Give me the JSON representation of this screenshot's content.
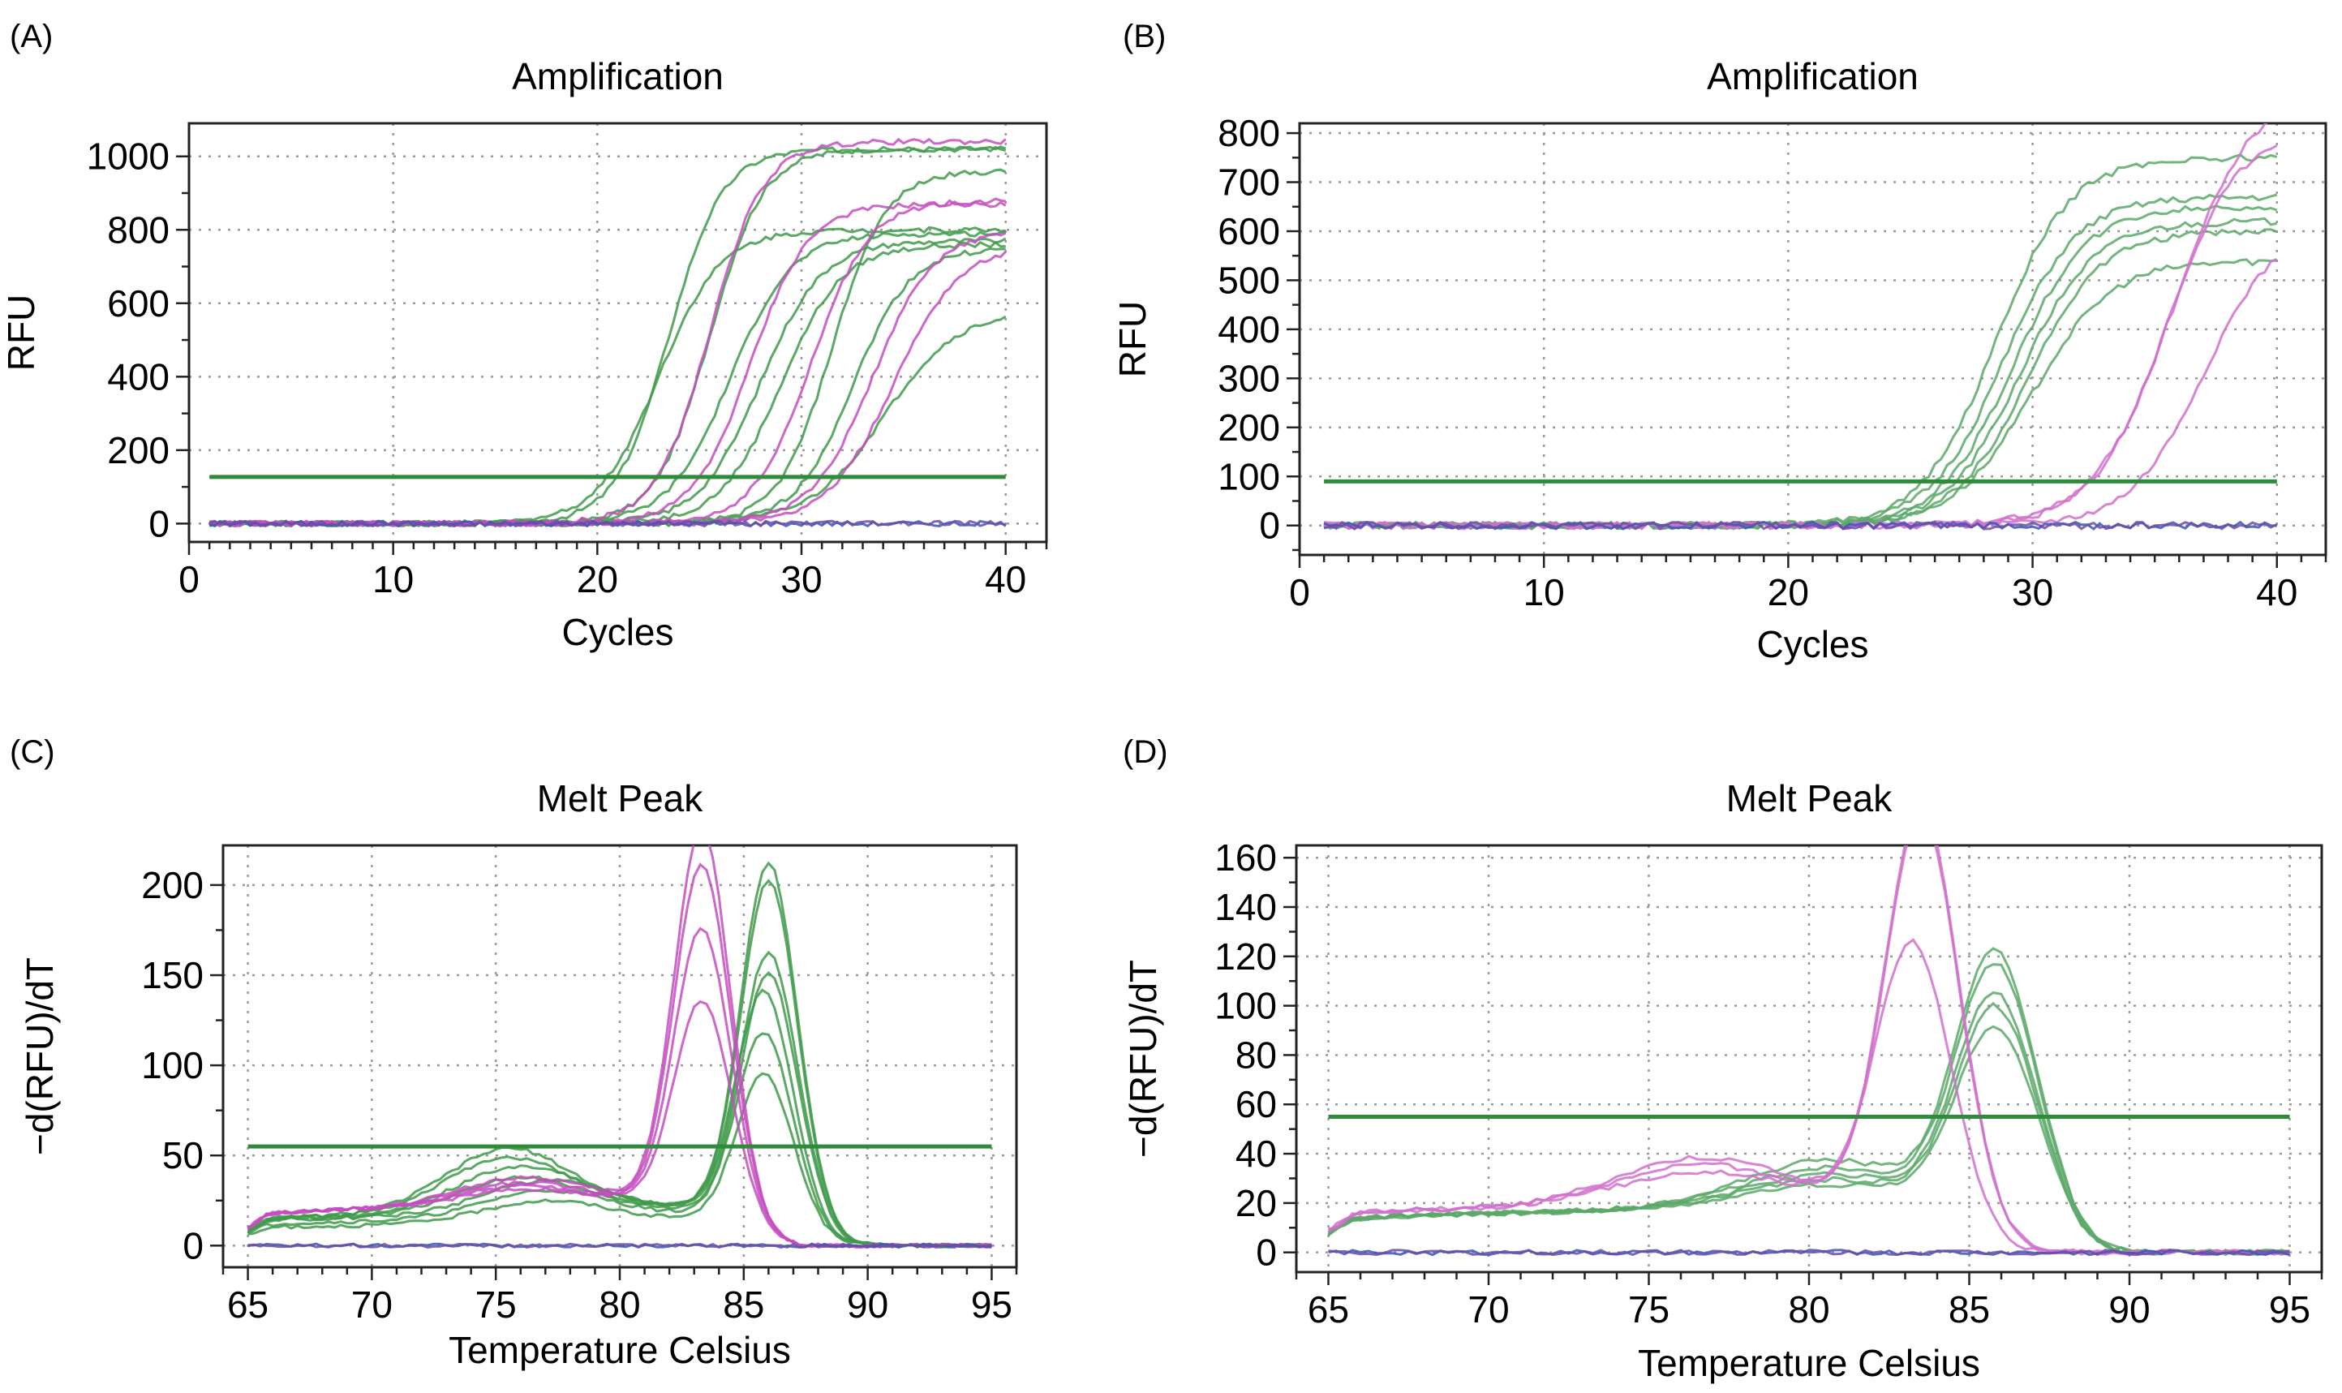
{
  "panels": [
    {
      "id": "A",
      "label": "(A)",
      "chart_data": {
        "type": "line",
        "title": "Amplification",
        "xlabel": "Cycles",
        "ylabel": "RFU",
        "xlim": [
          0,
          42
        ],
        "ylim": [
          -50,
          1090
        ],
        "xticks": [
          0,
          10,
          20,
          30,
          40
        ],
        "yticks": [
          0,
          200,
          400,
          600,
          800,
          1000
        ],
        "threshold": 127,
        "threshold_range": [
          1,
          40
        ],
        "curve_model": "sigmoid",
        "series": [
          {
            "name": "green-1",
            "color": "#3f9a4a",
            "plateau": 1020,
            "midpoint": 23.5,
            "slope": 1.3,
            "x_start": 1,
            "x_end": 40
          },
          {
            "name": "green-2",
            "color": "#3f9a4a",
            "plateau": 800,
            "midpoint": 23.0,
            "slope": 1.5,
            "x_start": 1,
            "x_end": 40
          },
          {
            "name": "green-3",
            "color": "#3f9a4a",
            "plateau": 1020,
            "midpoint": 25.5,
            "slope": 1.3,
            "x_start": 1,
            "x_end": 40
          },
          {
            "name": "green-4",
            "color": "#3f9a4a",
            "plateau": 790,
            "midpoint": 26.5,
            "slope": 1.5,
            "x_start": 1,
            "x_end": 40
          },
          {
            "name": "green-5",
            "color": "#3f9a4a",
            "plateau": 770,
            "midpoint": 28.0,
            "slope": 1.5,
            "x_start": 1,
            "x_end": 40
          },
          {
            "name": "green-6",
            "color": "#3f9a4a",
            "plateau": 760,
            "midpoint": 29.0,
            "slope": 1.5,
            "x_start": 1,
            "x_end": 40
          },
          {
            "name": "green-7",
            "color": "#3f9a4a",
            "plateau": 960,
            "midpoint": 31.5,
            "slope": 1.3,
            "x_start": 1,
            "x_end": 40
          },
          {
            "name": "green-8",
            "color": "#3f9a4a",
            "plateau": 750,
            "midpoint": 32.5,
            "slope": 1.4,
            "x_start": 1,
            "x_end": 40
          },
          {
            "name": "green-9",
            "color": "#3f9a4a",
            "plateau": 580,
            "midpoint": 34.0,
            "slope": 1.8,
            "x_start": 1,
            "x_end": 40
          },
          {
            "name": "magenta-1",
            "color": "#c44cc0",
            "plateau": 1040,
            "midpoint": 25.5,
            "slope": 1.3,
            "x_start": 1,
            "x_end": 40
          },
          {
            "name": "magenta-2",
            "color": "#c44cc0",
            "plateau": 870,
            "midpoint": 27.5,
            "slope": 1.4,
            "x_start": 1,
            "x_end": 40
          },
          {
            "name": "magenta-3",
            "color": "#c44cc0",
            "plateau": 880,
            "midpoint": 30.5,
            "slope": 1.4,
            "x_start": 1,
            "x_end": 40
          },
          {
            "name": "magenta-4",
            "color": "#c44cc0",
            "plateau": 800,
            "midpoint": 33.5,
            "slope": 1.5,
            "x_start": 1,
            "x_end": 40
          },
          {
            "name": "magenta-5",
            "color": "#c44cc0",
            "plateau": 760,
            "midpoint": 34.5,
            "slope": 1.6,
            "x_start": 1,
            "x_end": 40
          },
          {
            "name": "negative-1",
            "color": "#3b55b8",
            "plateau": 0,
            "midpoint": 30,
            "slope": 1,
            "x_start": 1,
            "x_end": 40
          },
          {
            "name": "negative-2",
            "color": "#6a4fa6",
            "plateau": 0,
            "midpoint": 30,
            "slope": 1,
            "x_start": 1,
            "x_end": 40
          }
        ]
      }
    },
    {
      "id": "B",
      "label": "(B)",
      "chart_data": {
        "type": "line",
        "title": "Amplification",
        "xlabel": "Cycles",
        "ylabel": "RFU",
        "xlim": [
          0,
          42
        ],
        "ylim": [
          -60,
          820
        ],
        "xticks": [
          0,
          10,
          20,
          30,
          40
        ],
        "yticks": [
          0,
          100,
          200,
          300,
          400,
          500,
          600,
          700,
          800
        ],
        "threshold": 90,
        "threshold_range": [
          1,
          40
        ],
        "curve_model": "sigmoid",
        "series": [
          {
            "name": "green-1",
            "color": "#5aa867",
            "plateau": 750,
            "midpoint": 28.5,
            "slope": 1.5,
            "x_start": 1,
            "x_end": 40
          },
          {
            "name": "green-2",
            "color": "#5aa867",
            "plateau": 670,
            "midpoint": 28.8,
            "slope": 1.5,
            "x_start": 1,
            "x_end": 40
          },
          {
            "name": "green-3",
            "color": "#5aa867",
            "plateau": 650,
            "midpoint": 29.2,
            "slope": 1.5,
            "x_start": 1,
            "x_end": 40
          },
          {
            "name": "green-4",
            "color": "#5aa867",
            "plateau": 620,
            "midpoint": 29.5,
            "slope": 1.5,
            "x_start": 1,
            "x_end": 40
          },
          {
            "name": "green-5",
            "color": "#5aa867",
            "plateau": 600,
            "midpoint": 29.8,
            "slope": 1.5,
            "x_start": 1,
            "x_end": 40
          },
          {
            "name": "green-6",
            "color": "#5aa867",
            "plateau": 540,
            "midpoint": 30.0,
            "slope": 1.6,
            "x_start": 1,
            "x_end": 40
          },
          {
            "name": "magenta-1",
            "color": "#d070cc",
            "plateau": 900,
            "midpoint": 35.8,
            "slope": 1.6,
            "x_start": 1,
            "x_end": 40
          },
          {
            "name": "magenta-2",
            "color": "#d070cc",
            "plateau": 820,
            "midpoint": 35.5,
            "slope": 1.5,
            "x_start": 1,
            "x_end": 40
          },
          {
            "name": "magenta-3",
            "color": "#d070cc",
            "plateau": 620,
            "midpoint": 37.0,
            "slope": 1.5,
            "x_start": 1,
            "x_end": 40
          },
          {
            "name": "negative-1",
            "color": "#3b55b8",
            "plateau": 0,
            "midpoint": 30,
            "slope": 1,
            "x_start": 1,
            "x_end": 40
          },
          {
            "name": "negative-2",
            "color": "#6a4fa6",
            "plateau": 0,
            "midpoint": 30,
            "slope": 1,
            "x_start": 1,
            "x_end": 40
          }
        ]
      }
    },
    {
      "id": "C",
      "label": "(C)",
      "chart_data": {
        "type": "line",
        "title": "Melt Peak",
        "xlabel": "Temperature Celsius",
        "ylabel": "−d(RFU)/dT",
        "xlim": [
          64,
          96
        ],
        "ylim": [
          -12,
          222
        ],
        "xticks": [
          65,
          70,
          75,
          80,
          85,
          90,
          95
        ],
        "yticks": [
          0,
          50,
          100,
          150,
          200
        ],
        "threshold": 55,
        "threshold_range": [
          65,
          95
        ],
        "curve_model": "melt",
        "series": [
          {
            "name": "green-1",
            "color": "#3f9a4a",
            "peak_temp": 86.0,
            "peak_height": 190,
            "peak_width": 1.1,
            "shoulder_temp": 75.5,
            "shoulder_height": 35,
            "base": 15,
            "x_start": 65,
            "x_end": 95
          },
          {
            "name": "green-2",
            "color": "#3f9a4a",
            "peak_temp": 86.0,
            "peak_height": 180,
            "peak_width": 1.1,
            "shoulder_temp": 75.5,
            "shoulder_height": 30,
            "base": 15,
            "x_start": 65,
            "x_end": 95
          },
          {
            "name": "green-3",
            "color": "#3f9a4a",
            "peak_temp": 86.0,
            "peak_height": 140,
            "peak_width": 1.1,
            "shoulder_temp": 76.0,
            "shoulder_height": 25,
            "base": 15,
            "x_start": 65,
            "x_end": 95
          },
          {
            "name": "green-4",
            "color": "#3f9a4a",
            "peak_temp": 86.0,
            "peak_height": 130,
            "peak_width": 1.1,
            "shoulder_temp": 76.0,
            "shoulder_height": 20,
            "base": 14,
            "x_start": 65,
            "x_end": 95
          },
          {
            "name": "green-5",
            "color": "#3f9a4a",
            "peak_temp": 85.8,
            "peak_height": 120,
            "peak_width": 1.1,
            "shoulder_temp": 77.0,
            "shoulder_height": 18,
            "base": 14,
            "x_start": 65,
            "x_end": 95
          },
          {
            "name": "green-6",
            "color": "#3f9a4a",
            "peak_temp": 85.8,
            "peak_height": 100,
            "peak_width": 1.1,
            "shoulder_temp": 77.0,
            "shoulder_height": 15,
            "base": 12,
            "x_start": 65,
            "x_end": 95
          },
          {
            "name": "green-7",
            "color": "#3f9a4a",
            "peak_temp": 85.8,
            "peak_height": 80,
            "peak_width": 1.1,
            "shoulder_temp": 77.0,
            "shoulder_height": 12,
            "base": 10,
            "x_start": 65,
            "x_end": 95
          },
          {
            "name": "magenta-1",
            "color": "#c44cc0",
            "peak_temp": 83.3,
            "peak_height": 205,
            "peak_width": 1.1,
            "shoulder_temp": 76.0,
            "shoulder_height": 15,
            "base": 18,
            "x_start": 65,
            "x_end": 95
          },
          {
            "name": "magenta-2",
            "color": "#c44cc0",
            "peak_temp": 83.3,
            "peak_height": 185,
            "peak_width": 1.1,
            "shoulder_temp": 76.0,
            "shoulder_height": 12,
            "base": 18,
            "x_start": 65,
            "x_end": 95
          },
          {
            "name": "magenta-3",
            "color": "#c44cc0",
            "peak_temp": 83.3,
            "peak_height": 150,
            "peak_width": 1.1,
            "shoulder_temp": 76.0,
            "shoulder_height": 10,
            "base": 18,
            "x_start": 65,
            "x_end": 95
          },
          {
            "name": "magenta-4",
            "color": "#c44cc0",
            "peak_temp": 83.3,
            "peak_height": 110,
            "peak_width": 1.1,
            "shoulder_temp": 76.0,
            "shoulder_height": 8,
            "base": 18,
            "x_start": 65,
            "x_end": 95
          },
          {
            "name": "negative-1",
            "color": "#3b55b8",
            "peak_temp": 85,
            "peak_height": 0,
            "peak_width": 1,
            "shoulder_temp": 75,
            "shoulder_height": 0,
            "base": 0,
            "x_start": 65,
            "x_end": 95
          },
          {
            "name": "negative-2",
            "color": "#6a4fa6",
            "peak_temp": 85,
            "peak_height": 0,
            "peak_width": 1,
            "shoulder_temp": 75,
            "shoulder_height": 0,
            "base": 0,
            "x_start": 65,
            "x_end": 95
          }
        ]
      }
    },
    {
      "id": "D",
      "label": "(D)",
      "chart_data": {
        "type": "line",
        "title": "Melt Peak",
        "xlabel": "Temperature Celsius",
        "ylabel": "−d(RFU)/dT",
        "xlim": [
          64,
          96
        ],
        "ylim": [
          -8,
          165
        ],
        "xticks": [
          65,
          70,
          75,
          80,
          85,
          90,
          95
        ],
        "yticks": [
          0,
          20,
          40,
          60,
          80,
          100,
          120,
          140,
          160
        ],
        "threshold": 55,
        "threshold_range": [
          65,
          95
        ],
        "curve_model": "melt",
        "series": [
          {
            "name": "green-1",
            "color": "#5aa867",
            "peak_temp": 85.8,
            "peak_height": 100,
            "peak_width": 1.2,
            "shoulder_temp": 80.5,
            "shoulder_height": 18,
            "base": 14,
            "x_start": 65,
            "x_end": 95
          },
          {
            "name": "green-2",
            "color": "#5aa867",
            "peak_temp": 85.8,
            "peak_height": 95,
            "peak_width": 1.2,
            "shoulder_temp": 80.5,
            "shoulder_height": 15,
            "base": 14,
            "x_start": 65,
            "x_end": 95
          },
          {
            "name": "green-3",
            "color": "#5aa867",
            "peak_temp": 85.8,
            "peak_height": 83,
            "peak_width": 1.2,
            "shoulder_temp": 80.5,
            "shoulder_height": 12,
            "base": 14,
            "x_start": 65,
            "x_end": 95
          },
          {
            "name": "green-4",
            "color": "#5aa867",
            "peak_temp": 85.8,
            "peak_height": 78,
            "peak_width": 1.2,
            "shoulder_temp": 80.5,
            "shoulder_height": 10,
            "base": 14,
            "x_start": 65,
            "x_end": 95
          },
          {
            "name": "green-5",
            "color": "#5aa867",
            "peak_temp": 85.8,
            "peak_height": 70,
            "peak_width": 1.2,
            "shoulder_temp": 80.5,
            "shoulder_height": 8,
            "base": 14,
            "x_start": 65,
            "x_end": 95
          },
          {
            "name": "magenta-1",
            "color": "#d070cc",
            "peak_temp": 83.5,
            "peak_height": 158,
            "peak_width": 1.1,
            "shoulder_temp": 76.5,
            "shoulder_height": 18,
            "base": 16,
            "x_start": 65,
            "x_end": 95
          },
          {
            "name": "magenta-2",
            "color": "#d070cc",
            "peak_temp": 83.5,
            "peak_height": 155,
            "peak_width": 1.1,
            "shoulder_temp": 76.5,
            "shoulder_height": 15,
            "base": 16,
            "x_start": 65,
            "x_end": 95
          },
          {
            "name": "magenta-3",
            "color": "#d070cc",
            "peak_temp": 83.2,
            "peak_height": 103,
            "peak_width": 1.1,
            "shoulder_temp": 76.5,
            "shoulder_height": 12,
            "base": 16,
            "x_start": 65,
            "x_end": 95
          },
          {
            "name": "negative-1",
            "color": "#3b55b8",
            "peak_temp": 85,
            "peak_height": 0,
            "peak_width": 1,
            "shoulder_temp": 75,
            "shoulder_height": 0,
            "base": 0,
            "x_start": 65,
            "x_end": 95
          },
          {
            "name": "negative-2",
            "color": "#6a4fa6",
            "peak_temp": 85,
            "peak_height": 0,
            "peak_width": 1,
            "shoulder_temp": 75,
            "shoulder_height": 0,
            "base": 0,
            "x_start": 65,
            "x_end": 95
          }
        ]
      }
    }
  ]
}
